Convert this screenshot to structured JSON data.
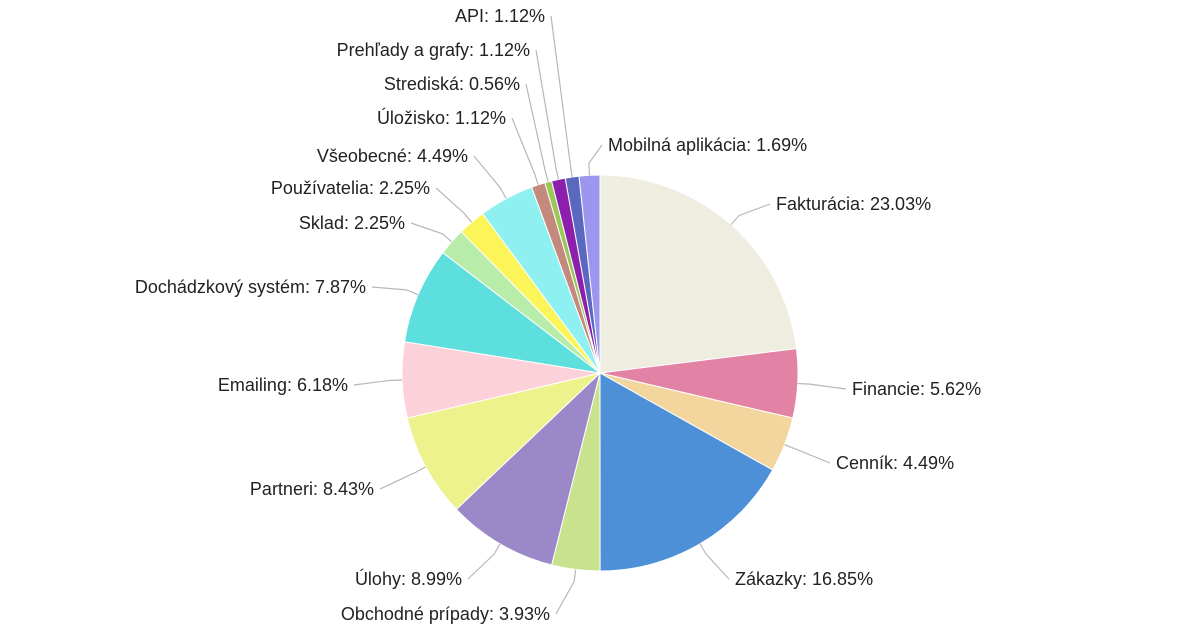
{
  "chart_data": {
    "type": "pie",
    "title": "",
    "slices": [
      {
        "label": "Fakturácia",
        "value": 23.03,
        "display": "Fakturácia: 23.03%",
        "color": "#efece0"
      },
      {
        "label": "Financie",
        "value": 5.62,
        "display": "Financie: 5.62%",
        "color": "#e283a6"
      },
      {
        "label": "Cenník",
        "value": 4.49,
        "display": "Cenník: 4.49%",
        "color": "#f3d69d"
      },
      {
        "label": "Zákazky",
        "value": 16.85,
        "display": "Zákazky: 16.85%",
        "color": "#4e90d8"
      },
      {
        "label": "Obchodné prípady",
        "value": 3.93,
        "display": "Obchodné prípady: 3.93%",
        "color": "#c8e28d"
      },
      {
        "label": "Úlohy",
        "value": 8.99,
        "display": "Úlohy: 8.99%",
        "color": "#9a88c8"
      },
      {
        "label": "Partneri",
        "value": 8.43,
        "display": "Partneri: 8.43%",
        "color": "#eef28d"
      },
      {
        "label": "Emailing",
        "value": 6.18,
        "display": "Emailing: 6.18%",
        "color": "#fdd1d9"
      },
      {
        "label": "Dochádzkový systém",
        "value": 7.87,
        "display": "Dochádzkový systém: 7.87%",
        "color": "#5ddfdd"
      },
      {
        "label": "Sklad",
        "value": 2.25,
        "display": "Sklad: 2.25%",
        "color": "#b7eda9"
      },
      {
        "label": "Používatelia",
        "value": 2.25,
        "display": "Používatelia: 2.25%",
        "color": "#fbf55a"
      },
      {
        "label": "Všeobecné",
        "value": 4.49,
        "display": "Všeobecné: 4.49%",
        "color": "#8ff0f1"
      },
      {
        "label": "Úložisko",
        "value": 1.12,
        "display": "Úložisko: 1.12%",
        "color": "#c4897d"
      },
      {
        "label": "Strediská",
        "value": 0.56,
        "display": "Strediská: 0.56%",
        "color": "#99c95a"
      },
      {
        "label": "Prehľady a grafy",
        "value": 1.12,
        "display": "Prehľady a grafy: 1.12%",
        "color": "#8e1fad"
      },
      {
        "label": "API",
        "value": 1.12,
        "display": "API: 1.12%",
        "color": "#5b68c0"
      },
      {
        "label": "Mobilná aplikácia",
        "value": 1.69,
        "display": "Mobilná aplikácia: 1.69%",
        "color": "#9d96ee"
      }
    ]
  }
}
